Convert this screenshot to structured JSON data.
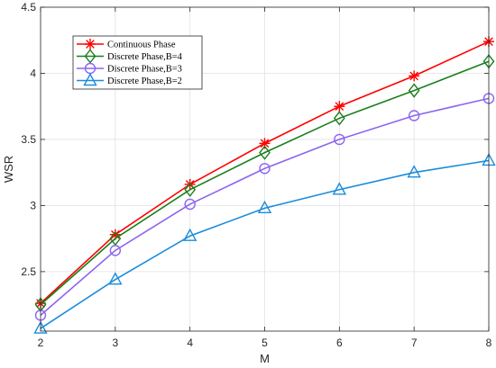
{
  "chart_data": {
    "type": "line",
    "xlabel": "M",
    "ylabel": "WSR",
    "x": [
      2,
      3,
      4,
      5,
      6,
      7,
      8
    ],
    "xlim": [
      2,
      8
    ],
    "ylim": [
      2.05,
      4.5
    ],
    "xticks": [
      "2",
      "3",
      "4",
      "5",
      "6",
      "7",
      "8"
    ],
    "yticks": [
      2.5,
      3,
      3.5,
      4,
      4.5
    ],
    "ytick_labels": [
      "2.5",
      "3",
      "3.5",
      "4",
      "4.5"
    ],
    "grid": true,
    "legend_position": "top-left",
    "series": [
      {
        "name": "Continuous Phase",
        "values": [
          2.26,
          2.78,
          3.16,
          3.47,
          3.75,
          3.98,
          4.24
        ],
        "color": "#ff0000",
        "marker": "asterisk"
      },
      {
        "name": "Discrete Phase,B=4",
        "values": [
          2.25,
          2.75,
          3.12,
          3.4,
          3.66,
          3.87,
          4.09
        ],
        "color": "#1a7f1a",
        "marker": "diamond"
      },
      {
        "name": "Discrete Phase,B=3",
        "values": [
          2.17,
          2.66,
          3.01,
          3.28,
          3.5,
          3.68,
          3.81
        ],
        "color": "#8c64f0",
        "marker": "circle"
      },
      {
        "name": "Discrete Phase,B=2",
        "values": [
          2.07,
          2.44,
          2.77,
          2.98,
          3.12,
          3.25,
          3.34
        ],
        "color": "#1a8cdc",
        "marker": "triangle"
      }
    ]
  }
}
